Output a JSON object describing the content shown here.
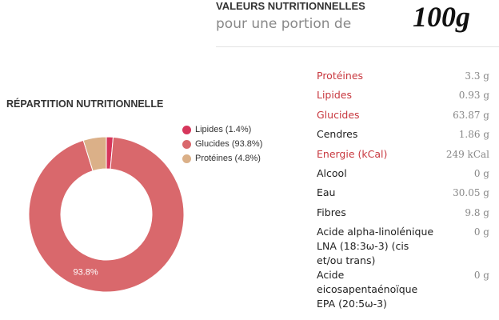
{
  "header": {
    "title": "VALEURS NUTRITIONNELLES",
    "subtitle": "pour une portion de",
    "portion": "100g"
  },
  "chart_data": {
    "type": "pie",
    "title": "RÉPARTITION NUTRITIONNELLE",
    "categories": [
      "Lipides (1.4%)",
      "Glucides (93.8%)",
      "Protéines (4.8%)"
    ],
    "values": [
      1.4,
      93.8,
      4.8
    ],
    "value_labels": [
      null,
      "93.8%",
      null
    ],
    "colors": [
      "#d6365b",
      "#d9686c",
      "#dbb088"
    ],
    "donut": true
  },
  "table": {
    "rows": [
      [
        "Protéines",
        "3.3 g"
      ],
      [
        "Lipides",
        "0.93 g"
      ],
      [
        "Glucides",
        "63.87 g"
      ],
      [
        "Cendres",
        "1.86 g"
      ],
      [
        "Energie (kCal)",
        "249 kCal"
      ],
      [
        "Alcool",
        "0 g"
      ],
      [
        "Eau",
        "30.05 g"
      ],
      [
        "Fibres",
        "9.8 g"
      ],
      [
        "Acide alpha-linolénique LNA (18:3ω-3) (cis et/ou trans)",
        "0 g"
      ],
      [
        "Acide eicosapentaénoïque EPA (20:5ω-3)",
        "0 g"
      ]
    ]
  }
}
